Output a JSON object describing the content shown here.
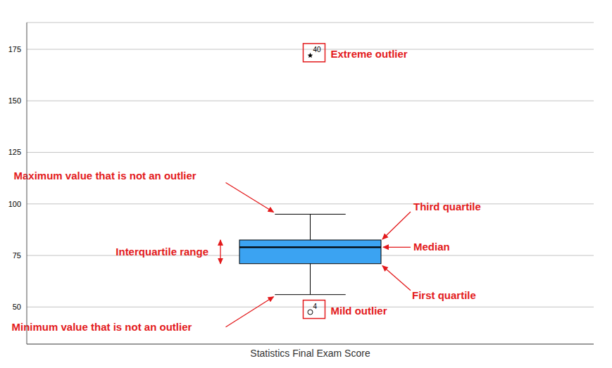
{
  "chart_data": {
    "type": "boxplot",
    "categories": [
      "Statistics Final Exam Score"
    ],
    "boxes": [
      {
        "min": 56,
        "q1": 71,
        "median": 79,
        "q3": 82.5,
        "max": 95,
        "outliers": [
          {
            "value": 172,
            "label": "40",
            "marker": "star"
          },
          {
            "value": 47.5,
            "label": "4",
            "marker": "circle"
          }
        ]
      }
    ],
    "color": "#3ba3f2",
    "ylim": [
      32,
      188
    ],
    "yticks": [
      50,
      75,
      100,
      125,
      150,
      175
    ],
    "grid": true,
    "annotations": {
      "extreme": "Extreme outlier",
      "max": "Maximum value that is not an outlier",
      "q3": "Third quartile",
      "median": "Median",
      "iqr": "Interquartile range",
      "q1": "First quartile",
      "mild": "Mild outlier",
      "min": "Minimum value that is not an outlier"
    }
  }
}
